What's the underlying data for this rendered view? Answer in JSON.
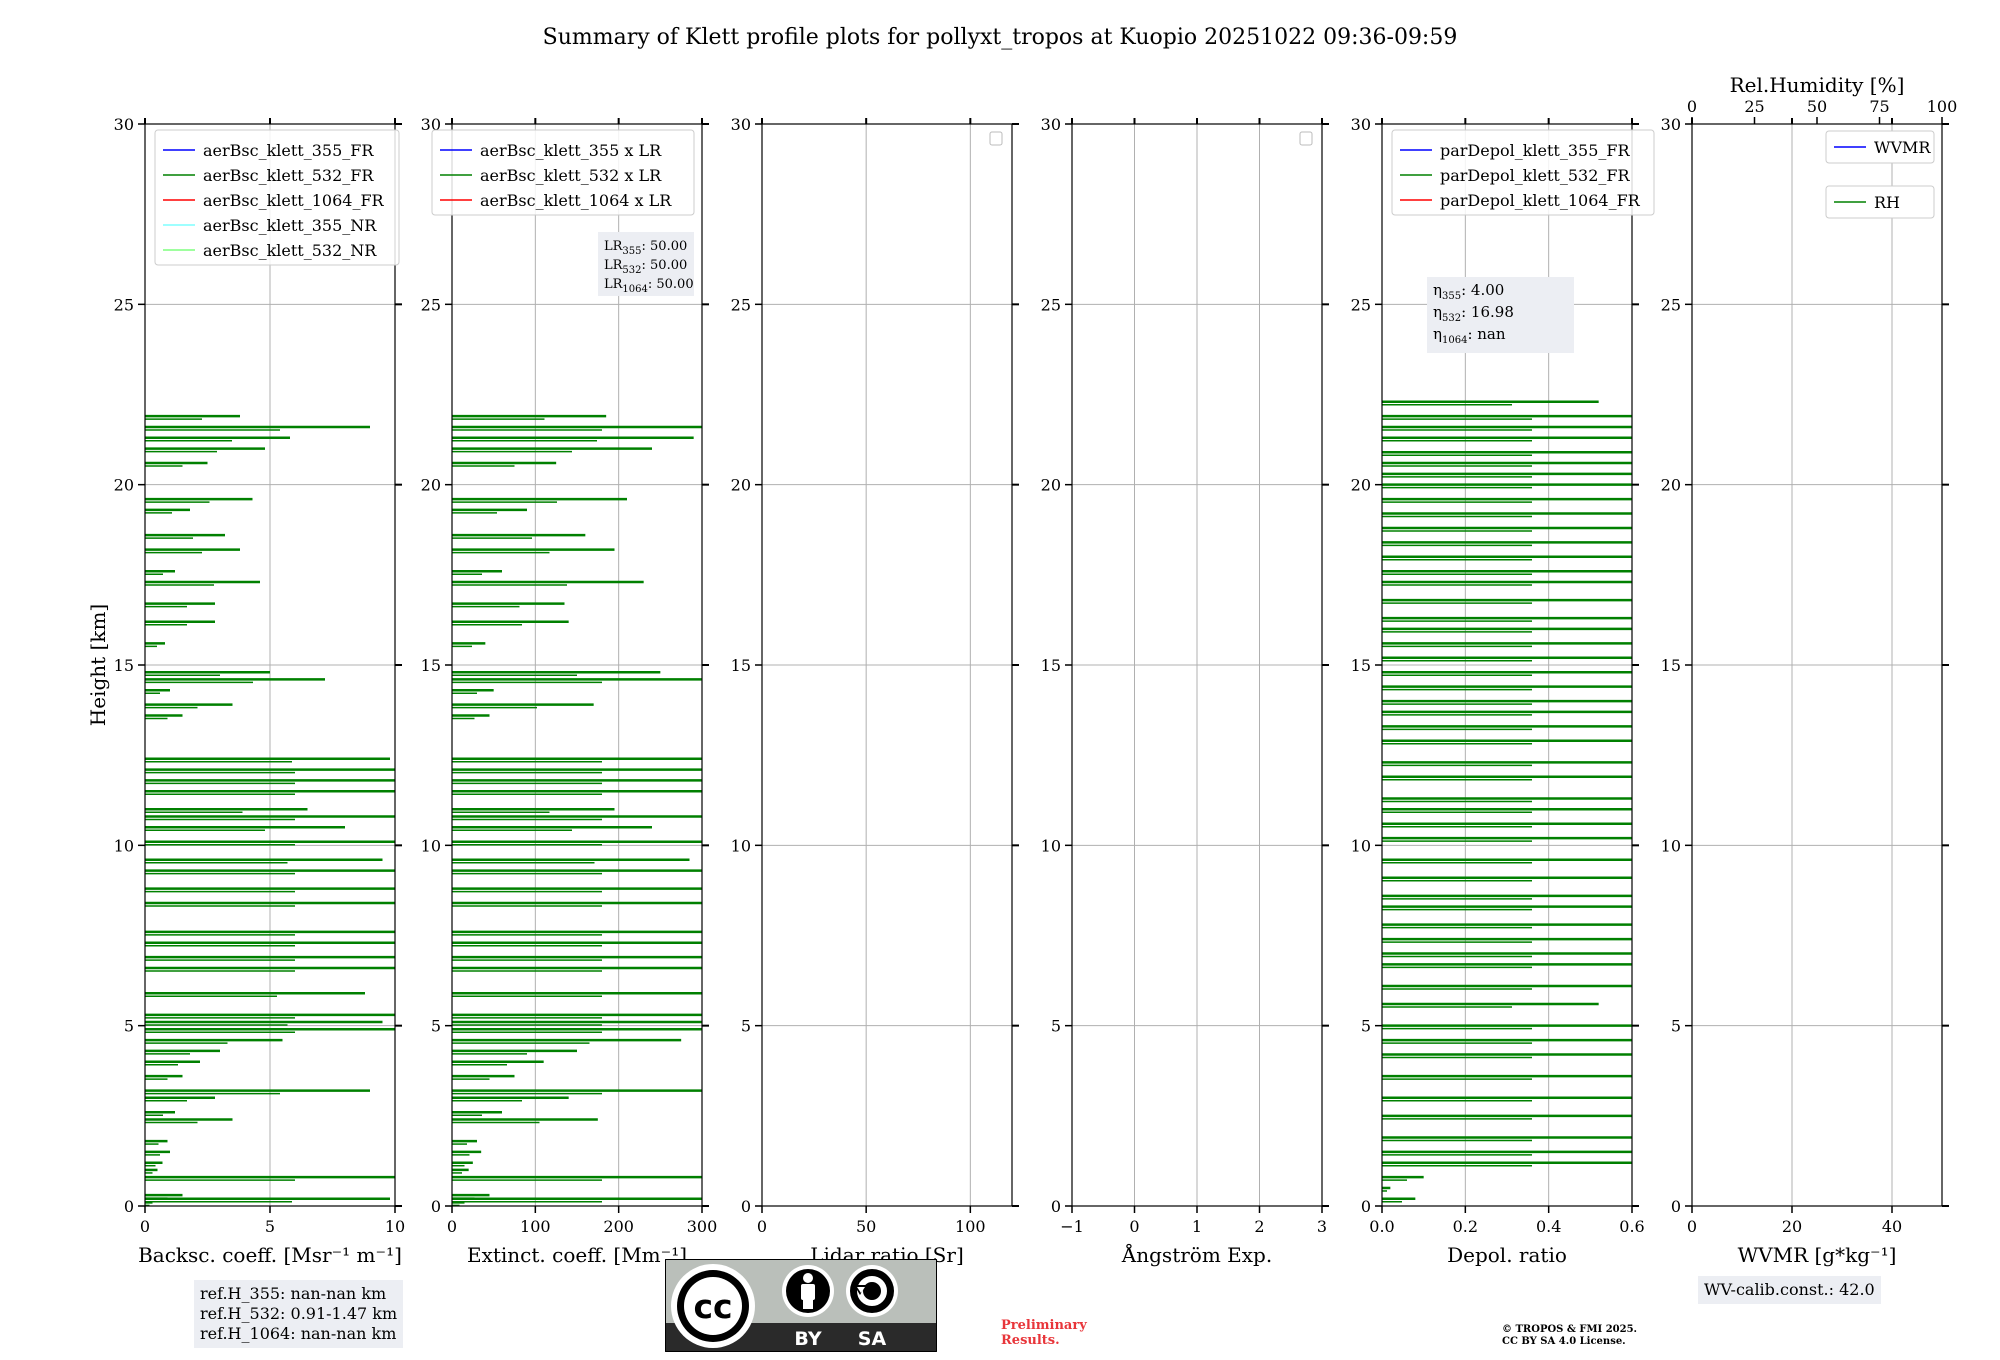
{
  "title": "Summary of Klett profile plots for pollyxt_tropos at Kuopio 20251022 09:36-09:59",
  "chart_data": [
    {
      "id": "backscatter",
      "type": "line",
      "xlabel": "Backsc. coeff. [Msr⁻¹ m⁻¹]",
      "ylabel": "Height [km]",
      "xlim": [
        0,
        10
      ],
      "ylim": [
        0,
        30
      ],
      "xticks": [
        "0",
        "5",
        "10"
      ],
      "yticks": [
        "0",
        "5",
        "10",
        "15",
        "20",
        "25",
        "30"
      ],
      "legend": [
        "aerBsc_klett_355_FR",
        "aerBsc_klett_532_FR",
        "aerBsc_klett_1064_FR",
        "aerBsc_klett_355_NR",
        "aerBsc_klett_532_NR"
      ],
      "legend_colors": [
        "#0000ff",
        "#008000",
        "#ff0000",
        "#7fffff",
        "#7fff7f"
      ],
      "legend_position": "top-left",
      "series": [
        {
          "name": "aerBsc_klett_532_FR",
          "color": "#008000",
          "y": [
            0.1,
            0.2,
            0.3,
            0.8,
            1.0,
            1.2,
            1.5,
            1.8,
            2.4,
            2.6,
            3.0,
            3.2,
            3.6,
            4.0,
            4.3,
            4.6,
            4.9,
            5.1,
            5.3,
            5.9,
            6.6,
            6.9,
            7.3,
            7.6,
            8.4,
            8.8,
            9.3,
            9.6,
            10.1,
            10.5,
            10.8,
            11.0,
            11.5,
            11.8,
            12.1,
            12.4,
            13.6,
            13.9,
            14.3,
            14.6,
            14.8,
            15.6,
            16.2,
            16.7,
            17.3,
            17.6,
            18.2,
            18.6,
            19.3,
            19.6,
            20.6,
            21.0,
            21.3,
            21.6,
            21.9
          ],
          "values": [
            0.3,
            9.8,
            1.5,
            10.0,
            0.5,
            0.7,
            1.0,
            0.9,
            3.5,
            1.2,
            2.8,
            9.0,
            1.5,
            2.2,
            3.0,
            5.5,
            10.0,
            9.5,
            10.0,
            8.8,
            10.0,
            10.0,
            10.0,
            10.0,
            10.0,
            10.0,
            10.0,
            9.5,
            10.0,
            8.0,
            10.0,
            6.5,
            10.0,
            10.0,
            10.0,
            9.8,
            1.5,
            3.5,
            1.0,
            7.2,
            5.0,
            0.8,
            2.8,
            2.8,
            4.6,
            1.2,
            3.8,
            3.2,
            1.8,
            4.3,
            2.5,
            4.8,
            5.8,
            9.0,
            3.8
          ]
        }
      ]
    },
    {
      "id": "extinction",
      "type": "line",
      "xlabel": "Extinct. coeff. [Mm⁻¹]",
      "xlim": [
        0,
        300
      ],
      "ylim": [
        0,
        30
      ],
      "xticks": [
        "0",
        "100",
        "200",
        "300"
      ],
      "yticks": [
        "0",
        "5",
        "10",
        "15",
        "20",
        "25",
        "30"
      ],
      "legend": [
        "aerBsc_klett_355 x LR",
        "aerBsc_klett_532 x LR",
        "aerBsc_klett_1064 x LR"
      ],
      "legend_colors": [
        "#0000ff",
        "#008000",
        "#ff0000"
      ],
      "legend_position": "top-right",
      "annotation": {
        "lines": [
          "LR355: 50.00",
          "LR532: 50.00",
          "LR1064: 50.00"
        ]
      },
      "series": [
        {
          "name": "aerBsc_klett_532 x LR",
          "color": "#008000",
          "y": [
            0.1,
            0.2,
            0.3,
            0.8,
            1.0,
            1.2,
            1.5,
            1.8,
            2.4,
            2.6,
            3.0,
            3.2,
            3.6,
            4.0,
            4.3,
            4.6,
            4.9,
            5.1,
            5.3,
            5.9,
            6.6,
            6.9,
            7.3,
            7.6,
            8.4,
            8.8,
            9.3,
            9.6,
            10.1,
            10.5,
            10.8,
            11.0,
            11.5,
            11.8,
            12.1,
            12.4,
            13.6,
            13.9,
            14.3,
            14.6,
            14.8,
            15.6,
            16.2,
            16.7,
            17.3,
            17.6,
            18.2,
            18.6,
            19.3,
            19.6,
            20.6,
            21.0,
            21.3,
            21.6,
            21.9
          ],
          "values": [
            15,
            300,
            45,
            300,
            20,
            25,
            35,
            30,
            175,
            60,
            140,
            300,
            75,
            110,
            150,
            275,
            300,
            300,
            300,
            300,
            300,
            300,
            300,
            300,
            300,
            300,
            300,
            285,
            300,
            240,
            300,
            195,
            300,
            300,
            300,
            300,
            45,
            170,
            50,
            300,
            250,
            40,
            140,
            135,
            230,
            60,
            195,
            160,
            90,
            210,
            125,
            240,
            290,
            300,
            185
          ]
        }
      ]
    },
    {
      "id": "lidar_ratio",
      "type": "line",
      "xlabel": "Lidar ratio [Sr]",
      "xlim": [
        0,
        120
      ],
      "ylim": [
        0,
        30
      ],
      "xticks": [
        "0",
        "50",
        "100"
      ],
      "yticks": [
        "0",
        "5",
        "10",
        "15",
        "20",
        "25",
        "30"
      ],
      "legend": [],
      "legend_position": "top-right",
      "series": []
    },
    {
      "id": "angstrom",
      "type": "line",
      "xlabel": "Ångström Exp.",
      "xlim": [
        -1,
        3
      ],
      "ylim": [
        0,
        30
      ],
      "xticks": [
        "−1",
        "0",
        "1",
        "2",
        "3"
      ],
      "yticks": [
        "0",
        "5",
        "10",
        "15",
        "20",
        "25",
        "30"
      ],
      "legend": [],
      "legend_position": "top-right",
      "series": []
    },
    {
      "id": "depol",
      "type": "line",
      "xlabel": "Depol. ratio",
      "xlim": [
        0,
        0.6
      ],
      "ylim": [
        0,
        30
      ],
      "xticks": [
        "0.0",
        "0.2",
        "0.4",
        "0.6"
      ],
      "yticks": [
        "0",
        "5",
        "10",
        "15",
        "20",
        "25",
        "30"
      ],
      "legend": [
        "parDepol_klett_355_FR",
        "parDepol_klett_532_FR",
        "parDepol_klett_1064_FR"
      ],
      "legend_colors": [
        "#0000ff",
        "#008000",
        "#ff0000"
      ],
      "legend_position": "top-left",
      "annotation": {
        "lines": [
          "η355: 4.00",
          "η532: 16.98",
          "η1064: nan"
        ]
      },
      "series": [
        {
          "name": "parDepol_klett_532_FR",
          "color": "#008000",
          "y": [
            0.2,
            0.5,
            0.8,
            1.2,
            1.5,
            1.9,
            2.5,
            3.0,
            3.6,
            4.2,
            4.6,
            5.0,
            5.6,
            6.1,
            6.7,
            7.0,
            7.4,
            7.8,
            8.3,
            8.6,
            9.1,
            9.6,
            10.2,
            10.6,
            11.0,
            11.3,
            11.9,
            12.3,
            12.9,
            13.3,
            13.7,
            14.0,
            14.4,
            14.8,
            15.2,
            15.6,
            16.0,
            16.3,
            16.8,
            17.3,
            17.6,
            18.0,
            18.4,
            18.8,
            19.2,
            19.6,
            20.0,
            20.3,
            20.6,
            20.9,
            21.3,
            21.6,
            21.9,
            22.3
          ],
          "values": [
            0.08,
            0.02,
            0.1,
            0.6,
            0.6,
            0.6,
            0.6,
            0.6,
            0.6,
            0.6,
            0.6,
            0.6,
            0.52,
            0.6,
            0.6,
            0.6,
            0.6,
            0.6,
            0.6,
            0.6,
            0.6,
            0.6,
            0.6,
            0.6,
            0.6,
            0.6,
            0.6,
            0.6,
            0.6,
            0.6,
            0.6,
            0.6,
            0.6,
            0.6,
            0.6,
            0.6,
            0.6,
            0.6,
            0.6,
            0.6,
            0.6,
            0.6,
            0.6,
            0.6,
            0.6,
            0.6,
            0.6,
            0.6,
            0.6,
            0.6,
            0.6,
            0.6,
            0.6,
            0.52
          ]
        }
      ]
    },
    {
      "id": "wvmr",
      "type": "line",
      "xlabel": "WVMR [g*kg⁻¹]",
      "x2label": "Rel.Humidity [%]",
      "xlim": [
        0,
        50
      ],
      "x2lim": [
        0,
        100
      ],
      "ylim": [
        0,
        30
      ],
      "xticks": [
        "0",
        "20",
        "40"
      ],
      "x2ticks": [
        "0",
        "25",
        "50",
        "75",
        "100"
      ],
      "yticks": [
        "0",
        "5",
        "10",
        "15",
        "20",
        "25",
        "30"
      ],
      "legend": [
        "WVMR",
        "RH"
      ],
      "legend_colors": [
        "#0000ff",
        "#008000"
      ],
      "legend_position": "top-right",
      "series": []
    }
  ],
  "info_boxes": {
    "ref_heights": [
      "ref.H_355: nan-nan km",
      "ref.H_532: 0.91-1.47 km",
      "ref.H_1064: nan-nan km"
    ],
    "wv_calib": "WV-calib.const.: 42.0"
  },
  "license_badge": {
    "label_by": "BY",
    "label_sa": "SA"
  },
  "preliminary": [
    "Preliminary",
    "Results."
  ],
  "copyright": [
    "© TROPOS & FMI 2025.",
    "CC BY SA 4.0 License."
  ]
}
